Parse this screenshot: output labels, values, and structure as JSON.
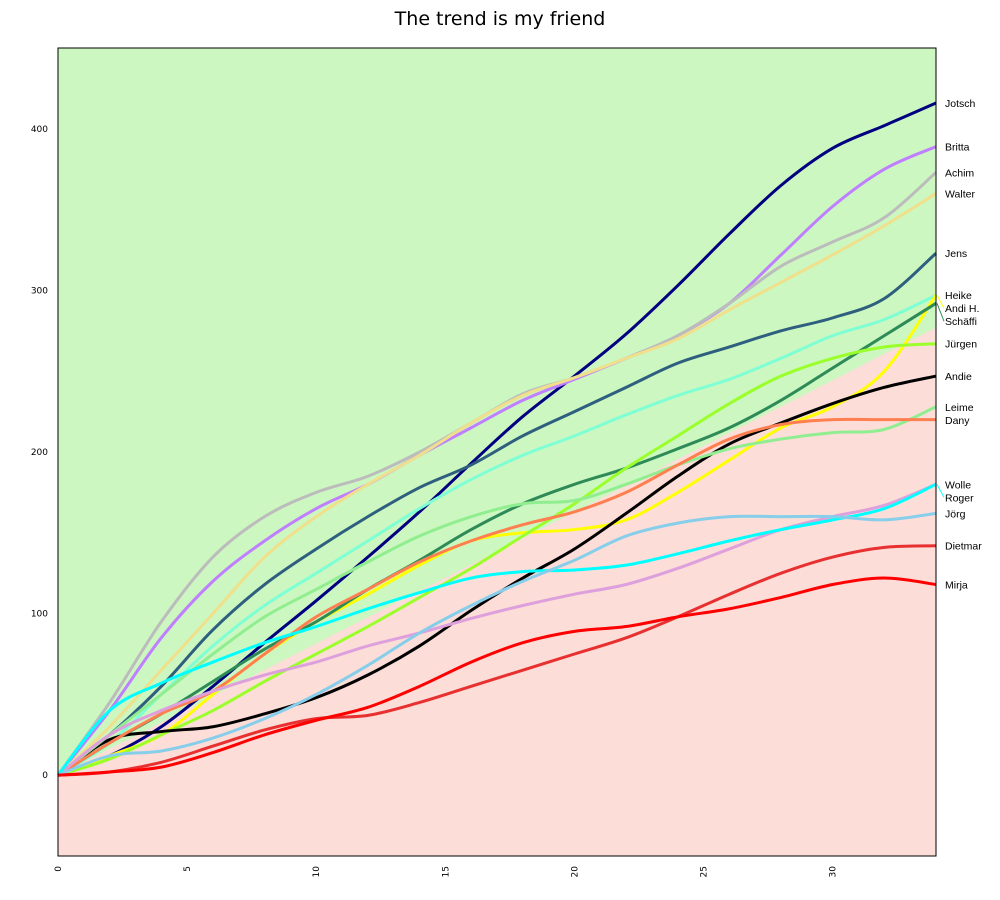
{
  "chart_data": {
    "type": "line",
    "title": "The trend is my friend",
    "xlabel": "",
    "ylabel": "",
    "xlim": [
      0,
      34
    ],
    "ylim": [
      -50,
      450
    ],
    "xticks": [
      0,
      5,
      10,
      15,
      20,
      25,
      30
    ],
    "yticks": [
      0,
      100,
      200,
      300,
      400
    ],
    "grid": false,
    "legend": "right-end labels",
    "background": {
      "above_color": "#ccf7c0",
      "below_color": "#fcddd8",
      "trend_line": [
        [
          0,
          0
        ],
        [
          34,
          277
        ]
      ]
    },
    "x": [
      0,
      2,
      4,
      6,
      8,
      10,
      12,
      14,
      16,
      18,
      20,
      22,
      24,
      26,
      28,
      30,
      32,
      34
    ],
    "series": [
      {
        "name": "Jotsch",
        "color": "#000080",
        "values": [
          0,
          12,
          30,
          55,
          82,
          108,
          135,
          163,
          193,
          222,
          247,
          273,
          303,
          335,
          365,
          388,
          402,
          416
        ]
      },
      {
        "name": "Britta",
        "color": "#bf7fff",
        "values": [
          0,
          40,
          85,
          120,
          145,
          165,
          180,
          198,
          215,
          232,
          245,
          258,
          272,
          292,
          322,
          352,
          375,
          389
        ]
      },
      {
        "name": "Achim",
        "color": "#bcbcbc",
        "values": [
          0,
          45,
          95,
          135,
          160,
          175,
          185,
          200,
          218,
          236,
          246,
          258,
          272,
          292,
          315,
          330,
          345,
          373
        ]
      },
      {
        "name": "Walter",
        "color": "#f0e08c",
        "values": [
          0,
          30,
          65,
          100,
          135,
          160,
          180,
          198,
          218,
          235,
          246,
          258,
          270,
          288,
          305,
          322,
          340,
          360
        ]
      },
      {
        "name": "Jens",
        "color": "#2f5f7f",
        "values": [
          0,
          25,
          55,
          90,
          118,
          140,
          160,
          178,
          192,
          210,
          225,
          240,
          255,
          265,
          275,
          283,
          295,
          323
        ]
      },
      {
        "name": "Heike",
        "color": "#7fffd4",
        "values": [
          0,
          20,
          50,
          80,
          105,
          125,
          145,
          165,
          183,
          198,
          210,
          223,
          235,
          245,
          258,
          272,
          282,
          297
        ]
      },
      {
        "name": "Andi H.",
        "color": "#ffff00",
        "values": [
          0,
          12,
          25,
          50,
          75,
          95,
          112,
          130,
          145,
          150,
          152,
          158,
          175,
          195,
          215,
          228,
          250,
          297
        ]
      },
      {
        "name": "Schäffi",
        "color": "#2e8b57",
        "values": [
          0,
          20,
          38,
          58,
          78,
          95,
          115,
          133,
          152,
          168,
          180,
          190,
          202,
          215,
          232,
          252,
          272,
          292
        ]
      },
      {
        "name": "Jürgen",
        "color": "#9aff2a",
        "values": [
          0,
          10,
          25,
          40,
          58,
          75,
          92,
          110,
          128,
          148,
          168,
          190,
          210,
          230,
          247,
          258,
          265,
          267
        ]
      },
      {
        "name": "Andie",
        "color": "#000000",
        "values": [
          0,
          22,
          27,
          30,
          38,
          48,
          62,
          80,
          102,
          122,
          140,
          162,
          185,
          205,
          218,
          230,
          240,
          247
        ]
      },
      {
        "name": "Leime",
        "color": "#90ee90",
        "values": [
          0,
          25,
          50,
          75,
          98,
          115,
          132,
          148,
          160,
          168,
          170,
          180,
          192,
          202,
          208,
          212,
          214,
          228
        ]
      },
      {
        "name": "Dany",
        "color": "#ff7f50",
        "values": [
          0,
          20,
          38,
          52,
          75,
          98,
          115,
          132,
          145,
          155,
          163,
          175,
          192,
          208,
          217,
          220,
          220,
          220
        ]
      },
      {
        "name": "Wolle",
        "color": "#dda0dd",
        "values": [
          0,
          25,
          40,
          52,
          62,
          70,
          80,
          88,
          97,
          105,
          112,
          118,
          128,
          140,
          152,
          160,
          167,
          180
        ]
      },
      {
        "name": "Roger",
        "color": "#00ffff",
        "values": [
          0,
          40,
          57,
          70,
          82,
          92,
          103,
          113,
          122,
          126,
          127,
          130,
          137,
          145,
          152,
          158,
          165,
          180
        ]
      },
      {
        "name": "Jörg",
        "color": "#87ceeb",
        "values": [
          0,
          12,
          15,
          23,
          35,
          50,
          68,
          88,
          105,
          120,
          133,
          148,
          156,
          160,
          160,
          160,
          158,
          162
        ]
      },
      {
        "name": "Dietmar",
        "color": "#e83030",
        "values": [
          0,
          2,
          8,
          18,
          28,
          35,
          37,
          45,
          55,
          65,
          75,
          85,
          98,
          112,
          125,
          135,
          141,
          142
        ]
      },
      {
        "name": "Mirja",
        "color": "#ff0000",
        "values": [
          0,
          2,
          5,
          14,
          25,
          34,
          42,
          55,
          70,
          82,
          89,
          92,
          98,
          103,
          110,
          118,
          122,
          118
        ]
      }
    ]
  }
}
